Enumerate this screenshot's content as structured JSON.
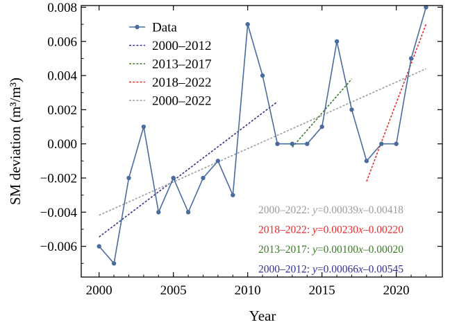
{
  "chart_data": {
    "type": "line",
    "xlabel": "Year",
    "ylabel": "SM deviation (m³/m³)",
    "xlim": [
      1998.8,
      2023.1
    ],
    "ylim": [
      -0.0078,
      0.0081
    ],
    "x_ticks": [
      2000,
      2005,
      2010,
      2015,
      2020
    ],
    "y_ticks": [
      -0.006,
      -0.004,
      -0.002,
      0.0,
      0.002,
      0.004,
      0.006,
      0.008
    ],
    "y_tick_labels": [
      "−0.006",
      "−0.004",
      "−0.002",
      "0.000",
      "0.002",
      "0.004",
      "0.006",
      "0.008"
    ],
    "series": [
      {
        "name": "Data",
        "kind": "line+markers",
        "color": "#4a6b9d",
        "x": [
          2000,
          2001,
          2002,
          2003,
          2004,
          2005,
          2006,
          2007,
          2008,
          2009,
          2010,
          2011,
          2012,
          2013,
          2014,
          2015,
          2016,
          2017,
          2018,
          2019,
          2020,
          2021,
          2022
        ],
        "y": [
          -0.006,
          -0.007,
          -0.002,
          0.001,
          -0.004,
          -0.002,
          -0.004,
          -0.002,
          -0.001,
          -0.003,
          0.007,
          0.004,
          0.0,
          0.0,
          0.0,
          0.001,
          0.006,
          0.002,
          -0.001,
          0.0,
          0.0,
          0.005,
          0.008
        ]
      },
      {
        "name": "2000–2012",
        "kind": "dashed-trend",
        "color": "#2e3192",
        "x": [
          2000,
          2012
        ],
        "slope": 0.00066,
        "intercept_at_start": -0.00545
      },
      {
        "name": "2013–2017",
        "kind": "dashed-trend",
        "color": "#3a7a26",
        "x": [
          2013,
          2017
        ],
        "slope": 0.001,
        "intercept_at_start": -0.0002
      },
      {
        "name": "2018–2022",
        "kind": "dashed-trend",
        "color": "#e8282b",
        "x": [
          2018,
          2022
        ],
        "slope": 0.0023,
        "intercept_at_start": -0.0022
      },
      {
        "name": "2000–2022",
        "kind": "dashed-trend",
        "color": "#9b9b9b",
        "x": [
          2000,
          2022
        ],
        "slope": 0.00039,
        "intercept_at_start": -0.00418
      }
    ],
    "legend_position": "top-left",
    "annotations": [
      {
        "range": "2000–2022",
        "sep": ": ",
        "y": "y",
        "eq": "=0.00039",
        "x": "x",
        "rest": "–0.00418",
        "color": "#9b9b9b"
      },
      {
        "range": "2018–2022",
        "sep": ": ",
        "y": "y",
        "eq": "=0.00230",
        "x": "x",
        "rest": "–0.00220",
        "color": "#e8282b"
      },
      {
        "range": "2013–2017",
        "sep": ": ",
        "y": "y",
        "eq": "=0.00100",
        "x": "x",
        "rest": "–0.00020",
        "color": "#3a7a26"
      },
      {
        "range": "2000–2012",
        "sep": ": ",
        "y": "y",
        "eq": "=0.00066",
        "x": "x",
        "rest": "–0.00545",
        "color": "#2e3192"
      }
    ]
  }
}
